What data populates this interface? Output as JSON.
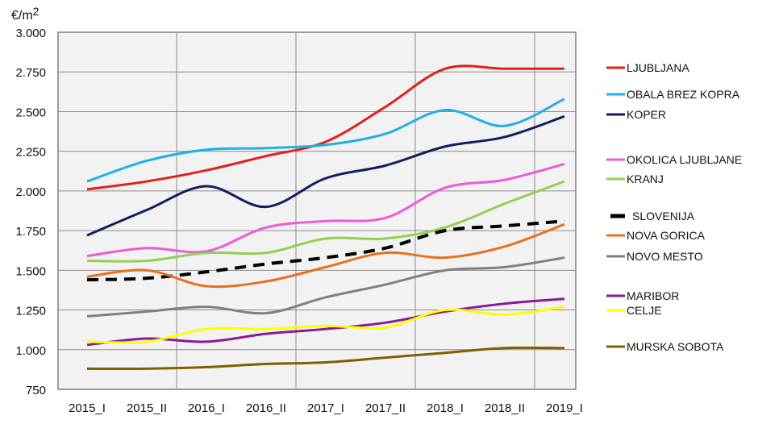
{
  "chart_data": {
    "type": "line",
    "ylabel": "€/m2",
    "ylim": [
      750,
      3000
    ],
    "yticks": [
      "3.000",
      "2.750",
      "2.500",
      "2.250",
      "2.000",
      "1.750",
      "1.500",
      "1.250",
      "1.000",
      "750"
    ],
    "ytick_values": [
      3000,
      2750,
      2500,
      2250,
      2000,
      1750,
      1500,
      1250,
      1000,
      750
    ],
    "categories": [
      "2015_I",
      "2015_II",
      "2016_I",
      "2016_II",
      "2017_I",
      "2017_II",
      "2018_I",
      "2018_II",
      "2019_I"
    ],
    "grid": true,
    "legend_placement": "right",
    "series": [
      {
        "name": "LJUBLJANA",
        "color": "#e3201b",
        "dashed": false,
        "values": [
          2010,
          2060,
          2130,
          2220,
          2310,
          2530,
          2770,
          2770,
          2770
        ]
      },
      {
        "name": "OBALA BREZ KOPRA",
        "color": "#1eb0e6",
        "dashed": false,
        "values": [
          2060,
          2190,
          2260,
          2270,
          2290,
          2360,
          2510,
          2410,
          2580
        ]
      },
      {
        "name": "KOPER",
        "color": "#0f1f5e",
        "dashed": false,
        "values": [
          1720,
          1880,
          2030,
          1900,
          2080,
          2160,
          2280,
          2340,
          2470
        ]
      },
      {
        "name": "OKOLICA LJUBLJANE",
        "color": "#ee5ad8",
        "dashed": false,
        "values": [
          1590,
          1640,
          1620,
          1770,
          1810,
          1830,
          2020,
          2070,
          2170
        ]
      },
      {
        "name": "KRANJ",
        "color": "#92d050",
        "dashed": false,
        "values": [
          1560,
          1560,
          1610,
          1610,
          1700,
          1700,
          1770,
          1920,
          2060
        ]
      },
      {
        "name": "SLOVENIJA",
        "color": "#000000",
        "dashed": true,
        "values": [
          1440,
          1450,
          1490,
          1540,
          1580,
          1640,
          1750,
          1780,
          1810
        ]
      },
      {
        "name": "NOVA GORICA",
        "color": "#e8701e",
        "dashed": false,
        "values": [
          1460,
          1500,
          1400,
          1430,
          1520,
          1610,
          1580,
          1650,
          1790
        ]
      },
      {
        "name": "NOVO MESTO",
        "color": "#808080",
        "dashed": false,
        "values": [
          1210,
          1240,
          1270,
          1230,
          1330,
          1410,
          1500,
          1520,
          1580
        ]
      },
      {
        "name": "MARIBOR",
        "color": "#8a1a98",
        "dashed": false,
        "values": [
          1030,
          1070,
          1050,
          1100,
          1130,
          1170,
          1240,
          1290,
          1320
        ]
      },
      {
        "name": "CELJE",
        "color": "#ffff00",
        "dashed": false,
        "values": [
          1050,
          1050,
          1130,
          1130,
          1150,
          1140,
          1250,
          1220,
          1270
        ]
      },
      {
        "name": "MURSKA SOBOTA",
        "color": "#7f6000",
        "dashed": false,
        "values": [
          880,
          880,
          890,
          910,
          920,
          950,
          980,
          1010,
          1010
        ]
      }
    ]
  }
}
